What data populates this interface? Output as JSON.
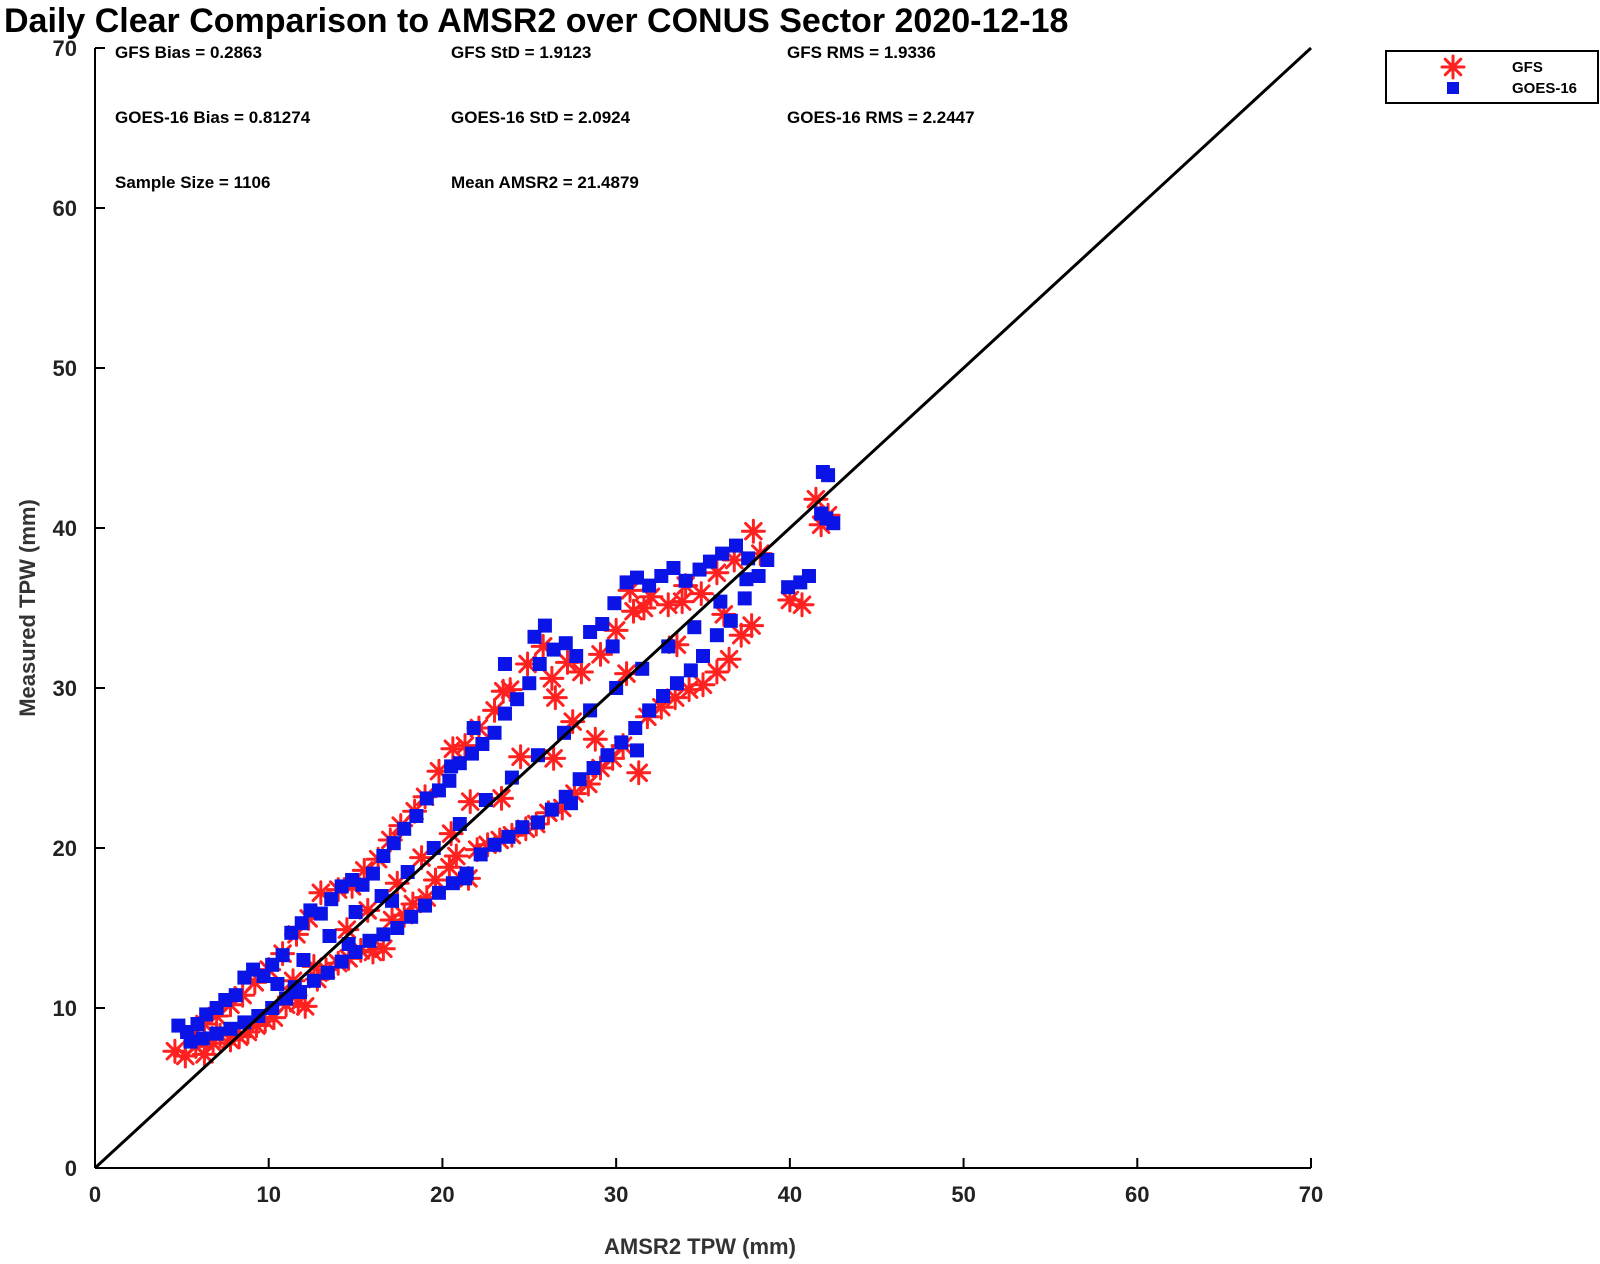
{
  "chart_data": {
    "type": "scatter",
    "title": "Daily Clear Comparison to AMSR2 over CONUS Sector 2020-12-18",
    "xlabel": "AMSR2 TPW (mm)",
    "ylabel": "Measured TPW (mm)",
    "xlim": [
      0,
      70
    ],
    "ylim": [
      0,
      70
    ],
    "xticks": [
      "0",
      "10",
      "20",
      "30",
      "40",
      "50",
      "60",
      "70"
    ],
    "yticks": [
      "0",
      "10",
      "20",
      "30",
      "40",
      "50",
      "60",
      "70"
    ],
    "grid": false,
    "legend_position": "outside-top-right",
    "reference_line": {
      "x": [
        0,
        70
      ],
      "y": [
        0,
        70
      ],
      "color": "#000000"
    },
    "stats": [
      "GFS Bias = 0.2863",
      "GFS StD = 1.9123",
      "GFS RMS = 1.9336",
      "GOES-16 Bias = 0.81274",
      "GOES-16 StD = 2.0924",
      "GOES-16 RMS = 2.2447",
      "Sample Size = 1106",
      "Mean AMSR2 = 21.4879"
    ],
    "series": [
      {
        "name": "GFS",
        "marker": "asterisk",
        "color": "#ff2020",
        "points": [
          [
            4.6,
            7.3
          ],
          [
            5.2,
            7.0
          ],
          [
            5.8,
            7.6
          ],
          [
            6.3,
            7.1
          ],
          [
            6.8,
            7.8
          ],
          [
            7.2,
            8.3
          ],
          [
            7.8,
            8.0
          ],
          [
            8.3,
            8.2
          ],
          [
            8.8,
            8.5
          ],
          [
            9.3,
            8.9
          ],
          [
            9.8,
            9.2
          ],
          [
            10.3,
            9.4
          ],
          [
            11.0,
            10.2
          ],
          [
            11.7,
            10.3
          ],
          [
            12.1,
            10.1
          ],
          [
            12.8,
            11.8
          ],
          [
            13.3,
            12.4
          ],
          [
            14.0,
            12.8
          ],
          [
            14.6,
            13.1
          ],
          [
            15.3,
            13.6
          ],
          [
            16.0,
            13.5
          ],
          [
            16.6,
            13.7
          ],
          [
            17.1,
            15.5
          ],
          [
            17.8,
            15.8
          ],
          [
            18.3,
            16.5
          ],
          [
            19.1,
            16.9
          ],
          [
            19.6,
            18.0
          ],
          [
            20.4,
            18.8
          ],
          [
            20.8,
            19.5
          ],
          [
            21.5,
            18.1
          ],
          [
            22.0,
            19.9
          ],
          [
            22.6,
            20.2
          ],
          [
            23.3,
            20.5
          ],
          [
            24.0,
            20.8
          ],
          [
            24.8,
            21.2
          ],
          [
            25.4,
            21.5
          ],
          [
            26.1,
            22.2
          ],
          [
            26.9,
            22.5
          ],
          [
            27.6,
            23.4
          ],
          [
            28.4,
            24.0
          ],
          [
            29.1,
            25.0
          ],
          [
            29.8,
            25.6
          ],
          [
            30.4,
            26.4
          ],
          [
            31.3,
            24.7
          ],
          [
            31.8,
            28.2
          ],
          [
            32.6,
            28.8
          ],
          [
            33.4,
            29.4
          ],
          [
            34.2,
            29.9
          ],
          [
            35.0,
            30.2
          ],
          [
            35.8,
            31.0
          ],
          [
            36.5,
            31.8
          ],
          [
            37.2,
            33.3
          ],
          [
            37.8,
            33.9
          ],
          [
            38.3,
            38.4
          ],
          [
            37.9,
            39.8
          ],
          [
            36.8,
            38.0
          ],
          [
            35.8,
            37.2
          ],
          [
            34.9,
            35.9
          ],
          [
            34.0,
            36.4
          ],
          [
            33.0,
            35.2
          ],
          [
            32.0,
            35.7
          ],
          [
            31.0,
            34.8
          ],
          [
            30.0,
            33.6
          ],
          [
            29.1,
            32.1
          ],
          [
            28.0,
            31.0
          ],
          [
            27.2,
            31.6
          ],
          [
            26.3,
            30.6
          ],
          [
            25.8,
            32.6
          ],
          [
            24.9,
            31.5
          ],
          [
            23.9,
            29.9
          ],
          [
            23.0,
            28.6
          ],
          [
            22.1,
            27.5
          ],
          [
            21.3,
            26.4
          ],
          [
            20.6,
            26.2
          ],
          [
            19.8,
            24.8
          ],
          [
            19.0,
            23.2
          ],
          [
            18.4,
            22.3
          ],
          [
            17.6,
            21.4
          ],
          [
            17.0,
            20.5
          ],
          [
            16.3,
            19.3
          ],
          [
            15.5,
            18.6
          ],
          [
            14.8,
            17.6
          ],
          [
            14.0,
            17.4
          ],
          [
            13.0,
            17.2
          ],
          [
            12.3,
            15.6
          ],
          [
            11.6,
            14.6
          ],
          [
            10.8,
            13.4
          ],
          [
            10.0,
            12.4
          ],
          [
            9.2,
            11.6
          ],
          [
            8.5,
            10.8
          ],
          [
            7.8,
            10.2
          ],
          [
            7.0,
            9.5
          ],
          [
            6.3,
            9.0
          ],
          [
            5.6,
            8.4
          ],
          [
            12.6,
            12.6
          ],
          [
            15.7,
            16.1
          ],
          [
            18.8,
            19.4
          ],
          [
            21.6,
            22.9
          ],
          [
            24.5,
            25.7
          ],
          [
            27.5,
            27.9
          ],
          [
            30.6,
            30.9
          ],
          [
            33.5,
            32.7
          ],
          [
            36.2,
            34.6
          ],
          [
            28.8,
            26.8
          ],
          [
            26.4,
            25.6
          ],
          [
            23.4,
            23.1
          ],
          [
            20.5,
            20.9
          ],
          [
            17.4,
            17.8
          ],
          [
            14.5,
            14.9
          ],
          [
            11.4,
            11.7
          ],
          [
            40.0,
            35.5
          ],
          [
            40.7,
            35.2
          ],
          [
            41.5,
            41.8
          ],
          [
            42.2,
            40.8
          ],
          [
            41.8,
            40.2
          ],
          [
            30.8,
            36.1
          ],
          [
            31.6,
            35.0
          ],
          [
            33.8,
            35.4
          ],
          [
            26.5,
            29.4
          ],
          [
            23.5,
            29.8
          ]
        ]
      },
      {
        "name": "GOES-16",
        "marker": "square",
        "color": "#0a14e6",
        "points": [
          [
            4.8,
            8.9
          ],
          [
            5.3,
            8.5
          ],
          [
            5.9,
            9.0
          ],
          [
            6.4,
            9.6
          ],
          [
            7.0,
            10.0
          ],
          [
            7.5,
            10.5
          ],
          [
            8.1,
            10.8
          ],
          [
            8.6,
            11.9
          ],
          [
            9.1,
            12.4
          ],
          [
            9.7,
            12.0
          ],
          [
            10.2,
            12.7
          ],
          [
            10.8,
            13.3
          ],
          [
            11.3,
            14.7
          ],
          [
            11.9,
            15.3
          ],
          [
            12.4,
            16.1
          ],
          [
            13.0,
            15.9
          ],
          [
            13.6,
            16.8
          ],
          [
            14.2,
            17.6
          ],
          [
            14.8,
            18.0
          ],
          [
            15.4,
            17.7
          ],
          [
            16.0,
            18.4
          ],
          [
            16.6,
            19.5
          ],
          [
            17.2,
            20.3
          ],
          [
            17.8,
            21.2
          ],
          [
            18.5,
            22.0
          ],
          [
            19.1,
            23.1
          ],
          [
            19.8,
            23.6
          ],
          [
            20.4,
            24.2
          ],
          [
            21.0,
            25.3
          ],
          [
            21.7,
            25.9
          ],
          [
            22.3,
            26.5
          ],
          [
            23.0,
            27.2
          ],
          [
            23.6,
            28.4
          ],
          [
            24.3,
            29.3
          ],
          [
            25.0,
            30.3
          ],
          [
            25.6,
            31.5
          ],
          [
            26.4,
            32.4
          ],
          [
            27.1,
            32.8
          ],
          [
            27.7,
            32.0
          ],
          [
            28.5,
            33.5
          ],
          [
            29.2,
            34.0
          ],
          [
            29.9,
            35.3
          ],
          [
            30.6,
            36.6
          ],
          [
            31.2,
            36.9
          ],
          [
            31.9,
            36.4
          ],
          [
            32.6,
            37.0
          ],
          [
            33.3,
            37.5
          ],
          [
            34.0,
            36.7
          ],
          [
            34.8,
            37.4
          ],
          [
            35.4,
            37.9
          ],
          [
            36.1,
            38.4
          ],
          [
            36.9,
            38.9
          ],
          [
            37.6,
            38.1
          ],
          [
            38.2,
            37.0
          ],
          [
            37.4,
            35.6
          ],
          [
            36.6,
            34.2
          ],
          [
            35.8,
            33.3
          ],
          [
            35.0,
            32.0
          ],
          [
            34.3,
            31.1
          ],
          [
            33.5,
            30.3
          ],
          [
            32.7,
            29.5
          ],
          [
            31.9,
            28.6
          ],
          [
            31.1,
            27.5
          ],
          [
            30.3,
            26.6
          ],
          [
            29.5,
            25.8
          ],
          [
            28.7,
            25.0
          ],
          [
            27.9,
            24.3
          ],
          [
            27.1,
            23.2
          ],
          [
            26.3,
            22.4
          ],
          [
            25.5,
            21.6
          ],
          [
            24.6,
            21.3
          ],
          [
            23.8,
            20.7
          ],
          [
            23.0,
            20.2
          ],
          [
            22.2,
            19.6
          ],
          [
            21.4,
            18.4
          ],
          [
            20.6,
            17.8
          ],
          [
            19.8,
            17.2
          ],
          [
            19.0,
            16.4
          ],
          [
            18.2,
            15.7
          ],
          [
            17.4,
            15.0
          ],
          [
            16.6,
            14.6
          ],
          [
            15.8,
            14.2
          ],
          [
            15.0,
            13.5
          ],
          [
            14.2,
            12.9
          ],
          [
            13.4,
            12.2
          ],
          [
            12.6,
            11.7
          ],
          [
            11.8,
            11.0
          ],
          [
            11.0,
            10.6
          ],
          [
            10.2,
            10.0
          ],
          [
            9.4,
            9.5
          ],
          [
            8.6,
            9.1
          ],
          [
            7.8,
            8.7
          ],
          [
            7.0,
            8.4
          ],
          [
            6.2,
            8.1
          ],
          [
            5.5,
            7.9
          ],
          [
            10.5,
            11.5
          ],
          [
            12.0,
            13.0
          ],
          [
            13.5,
            14.5
          ],
          [
            15.0,
            16.0
          ],
          [
            16.5,
            17.0
          ],
          [
            18.0,
            18.5
          ],
          [
            19.5,
            20.0
          ],
          [
            21.0,
            21.5
          ],
          [
            22.5,
            23.0
          ],
          [
            24.0,
            24.4
          ],
          [
            25.5,
            25.8
          ],
          [
            27.0,
            27.2
          ],
          [
            28.5,
            28.6
          ],
          [
            30.0,
            30.0
          ],
          [
            31.5,
            31.2
          ],
          [
            33.0,
            32.6
          ],
          [
            34.5,
            33.8
          ],
          [
            36.0,
            35.4
          ],
          [
            37.5,
            36.8
          ],
          [
            25.9,
            33.9
          ],
          [
            25.3,
            33.2
          ],
          [
            23.6,
            31.5
          ],
          [
            21.8,
            27.5
          ],
          [
            20.5,
            25.1
          ],
          [
            29.8,
            32.6
          ],
          [
            39.9,
            36.3
          ],
          [
            40.6,
            36.6
          ],
          [
            41.1,
            37.0
          ],
          [
            41.9,
            43.5
          ],
          [
            42.2,
            43.3
          ],
          [
            41.8,
            40.9
          ],
          [
            42.1,
            40.6
          ],
          [
            42.5,
            40.3
          ],
          [
            38.7,
            38.0
          ],
          [
            21.3,
            18.1
          ],
          [
            27.4,
            22.8
          ],
          [
            31.2,
            26.1
          ],
          [
            17.1,
            16.7
          ],
          [
            14.6,
            14.0
          ],
          [
            11.5,
            11.3
          ]
        ]
      }
    ]
  }
}
